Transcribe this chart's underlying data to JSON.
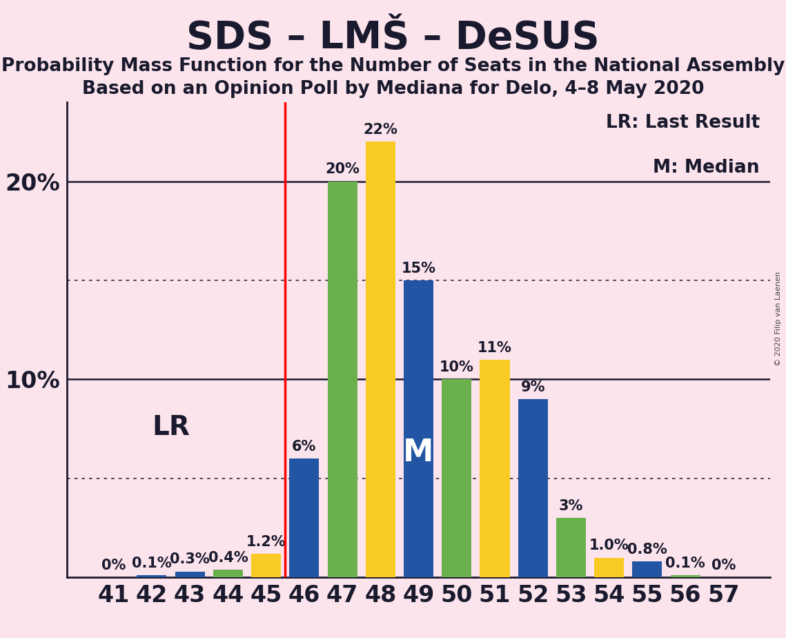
{
  "title": "SDS – LMŠ – DeSUS",
  "subtitle1": "Probability Mass Function for the Number of Seats in the National Assembly",
  "subtitle2": "Based on an Opinion Poll by Mediana for Delo, 4–8 May 2020",
  "copyright": "© 2020 Filip van Laenen",
  "seats": [
    41,
    42,
    43,
    44,
    45,
    46,
    47,
    48,
    49,
    50,
    51,
    52,
    53,
    54,
    55,
    56,
    57
  ],
  "values": [
    0.0,
    0.1,
    0.3,
    0.4,
    1.2,
    6.0,
    20.0,
    22.0,
    15.0,
    10.0,
    11.0,
    9.0,
    3.0,
    1.0,
    0.8,
    0.1,
    0.0
  ],
  "labels": [
    "0%",
    "0.1%",
    "0.3%",
    "0.4%",
    "1.2%",
    "6%",
    "20%",
    "22%",
    "15%",
    "10%",
    "11%",
    "9%",
    "3%",
    "1.0%",
    "0.8%",
    "0.1%",
    "0%"
  ],
  "colors": [
    "#2255a4",
    "#2255a4",
    "#2255a4",
    "#6ab04c",
    "#f9ca24",
    "#2255a4",
    "#6ab04c",
    "#f9ca24",
    "#2255a4",
    "#6ab04c",
    "#f9ca24",
    "#2255a4",
    "#6ab04c",
    "#f9ca24",
    "#2255a4",
    "#6ab04c",
    "#f9ca24"
  ],
  "median_seat": 49,
  "background_color": "#fce4ec",
  "bar_dark_color": "#1a1a2e",
  "ylim": [
    0,
    24
  ],
  "hline_solid": [
    10,
    20
  ],
  "hline_dot": [
    5,
    15
  ],
  "ytick_vals": [
    10,
    20
  ],
  "ytick_labels": [
    "10%",
    "20%"
  ],
  "tick_fontsize": 24,
  "bar_label_fontsize": 15,
  "title_fontsize": 40,
  "subtitle_fontsize": 19,
  "lr_label_fontsize": 28,
  "legend_fontsize": 19,
  "median_fontsize": 32,
  "copyright_fontsize": 8
}
